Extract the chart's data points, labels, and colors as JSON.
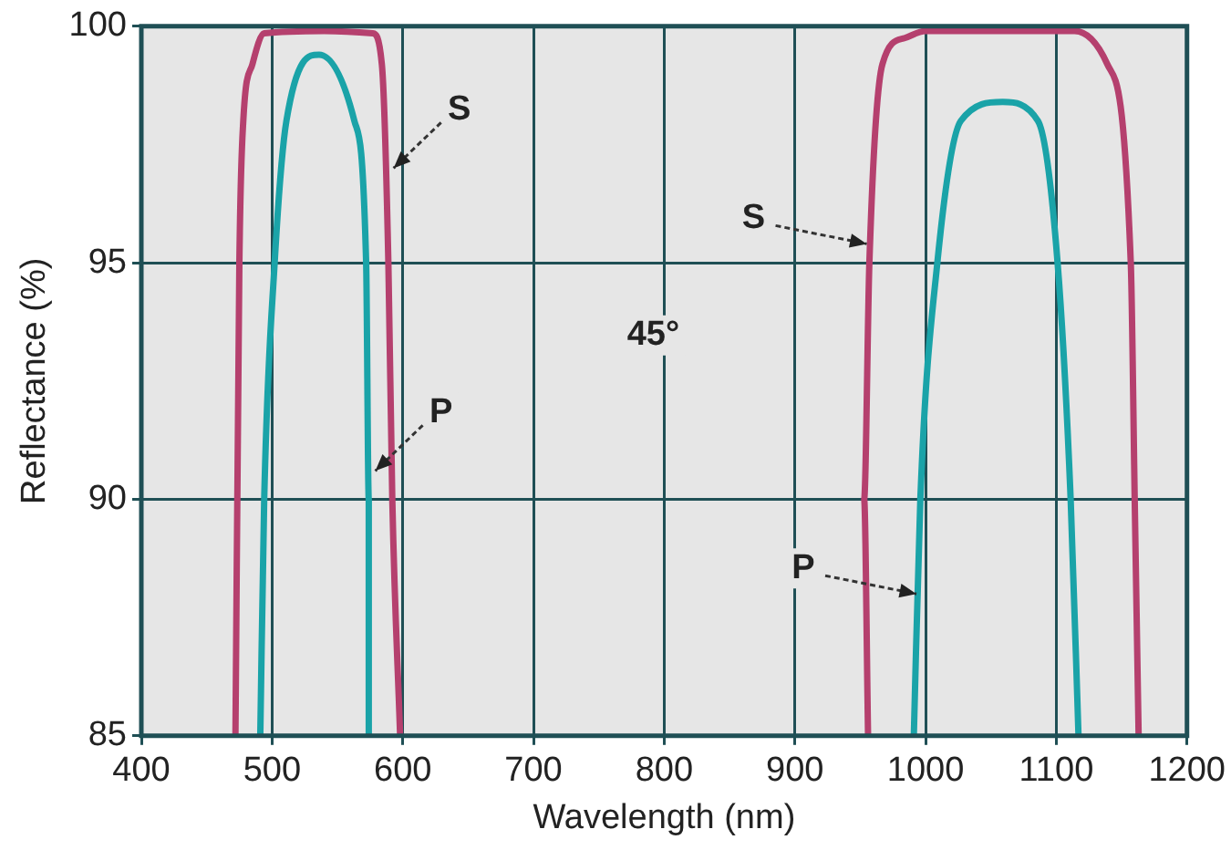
{
  "chart_data": {
    "type": "line",
    "xlabel": "Wavelength (nm)",
    "ylabel": "Reflectance (%)",
    "xlim": [
      400,
      1200
    ],
    "xticks": [
      400,
      500,
      600,
      700,
      800,
      900,
      1000,
      1100,
      1200
    ],
    "ylim": [
      85,
      100
    ],
    "yticks": [
      85,
      90,
      95,
      100
    ],
    "grid": true,
    "legend": false,
    "marker": "none",
    "line_style": "solid",
    "series": [
      {
        "color": "#b5406e",
        "x": [
          472,
          475,
          478,
          485,
          494,
          540,
          577,
          584,
          589,
          592,
          598
        ],
        "values": [
          85,
          95,
          98,
          99.2,
          99.85,
          99.9,
          99.85,
          99.2,
          95,
          90,
          85
        ]
      },
      {
        "color": "#1aa3a8",
        "x": [
          491,
          494,
          502,
          511,
          536,
          563,
          572,
          574,
          574
        ],
        "values": [
          85,
          90,
          95,
          98,
          99.4,
          98,
          95,
          90,
          85
        ]
      },
      {
        "color": "#b5406e",
        "x": [
          956,
          953,
          957,
          967,
          984,
          1000,
          1114,
          1139,
          1157,
          1160,
          1163
        ],
        "values": [
          85,
          90,
          95,
          99.2,
          99.75,
          99.9,
          99.9,
          99.2,
          95,
          90,
          85
        ]
      },
      {
        "color": "#1aa3a8",
        "x": [
          991,
          996,
          1009,
          1027,
          1059,
          1086,
          1101,
          1111,
          1117
        ],
        "values": [
          85,
          90,
          95,
          98,
          98.4,
          98,
          95,
          90,
          85
        ]
      }
    ],
    "annotations": [
      {
        "text": "S",
        "x": 593,
        "y": 97
      },
      {
        "text": "P",
        "x": 579,
        "y": 90.6
      },
      {
        "text": "S",
        "x": 955,
        "y": 95.4
      },
      {
        "text": "P",
        "x": 993,
        "y": 88
      },
      "45°"
    ]
  }
}
